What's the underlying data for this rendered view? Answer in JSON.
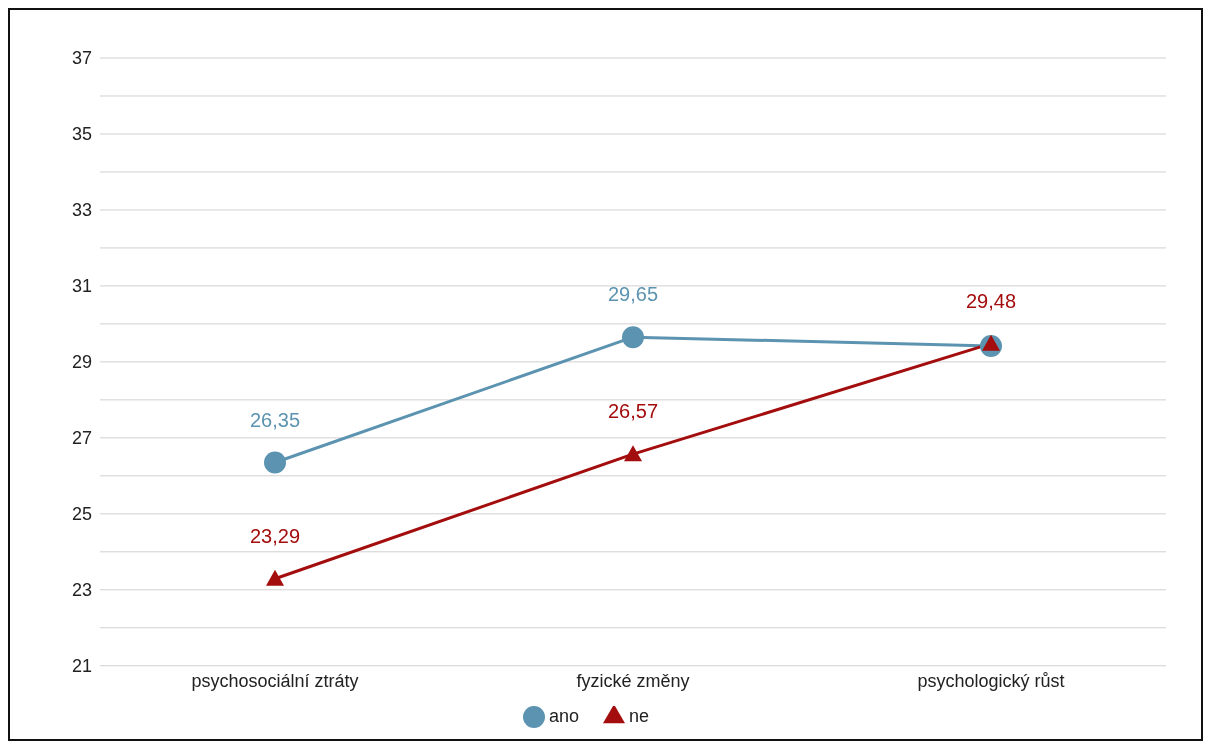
{
  "chart_data": {
    "type": "line",
    "categories": [
      "psychosociální ztráty",
      "fyzické změny",
      "psychologický růst"
    ],
    "series": [
      {
        "name": "ano",
        "color": "#5b93b0",
        "marker": "circle",
        "values": [
          26.35,
          29.65,
          29.42
        ],
        "value_labels": [
          "26,35",
          "29,65",
          null
        ]
      },
      {
        "name": "ne",
        "color": "#a30d0d",
        "marker": "triangle",
        "values": [
          23.29,
          26.57,
          29.48
        ],
        "value_labels": [
          "23,29",
          "26,57",
          "29,48"
        ]
      }
    ],
    "ylim": [
      21,
      37
    ],
    "yticks": [
      21,
      {
        "value": 22,
        "label": null
      },
      23,
      {
        "value": 24,
        "label": null
      },
      25,
      {
        "value": 26,
        "label": null
      },
      27,
      {
        "value": 28,
        "label": null
      },
      29,
      {
        "value": 30,
        "label": null
      },
      31,
      {
        "value": 32,
        "label": null
      },
      33,
      {
        "value": 34,
        "label": null
      },
      35,
      {
        "value": 36,
        "label": null
      },
      37
    ],
    "grid": "y",
    "legend": "bottom",
    "line_style": "solid"
  }
}
